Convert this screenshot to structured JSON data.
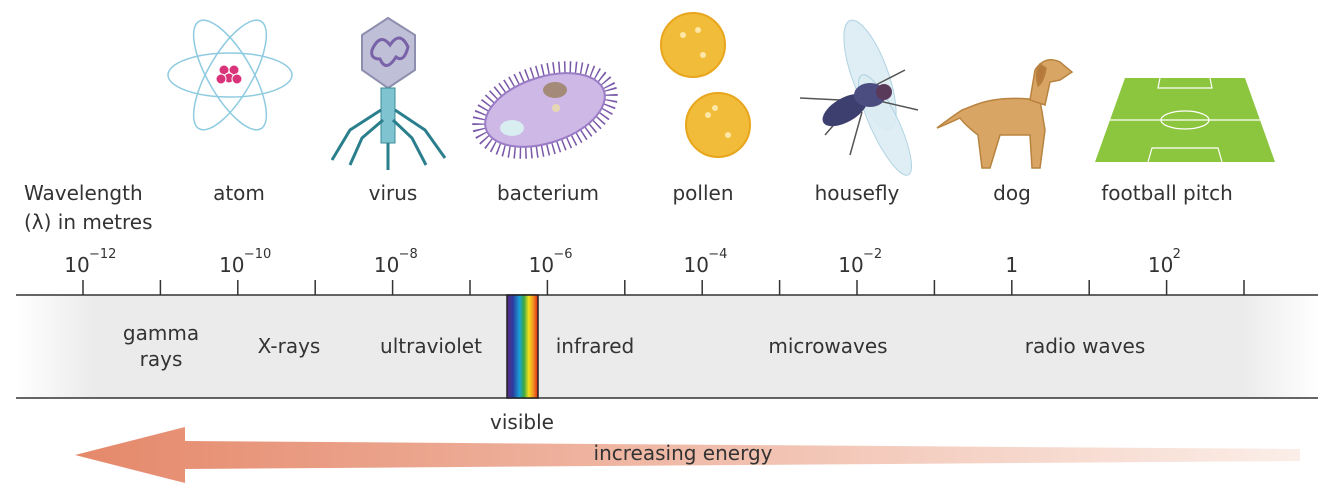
{
  "axis_label": {
    "lines": [
      "Wavelength",
      "(λ) in metres"
    ]
  },
  "objects": [
    "atom",
    "virus",
    "bacterium",
    "pollen",
    "housefly",
    "dog",
    "football pitch"
  ],
  "tick_labels": [
    {
      "base": "10",
      "exp": "−12"
    },
    {
      "base": "10",
      "exp": "−10"
    },
    {
      "base": "10",
      "exp": "−8"
    },
    {
      "base": "10",
      "exp": "−6"
    },
    {
      "base": "10",
      "exp": "−4"
    },
    {
      "base": "10",
      "exp": "−2"
    },
    {
      "base": "1"
    },
    {
      "base": "10",
      "exp": "2"
    }
  ],
  "bands": [
    {
      "lines": [
        "gamma",
        "rays"
      ]
    },
    {
      "lines": [
        "X-rays"
      ]
    },
    {
      "lines": [
        "ultraviolet"
      ]
    },
    {
      "lines": [
        "infrared"
      ]
    },
    {
      "lines": [
        "microwaves"
      ]
    },
    {
      "lines": [
        "radio waves"
      ]
    }
  ],
  "visible_label": "visible",
  "arrow_label": "increasing energy"
}
